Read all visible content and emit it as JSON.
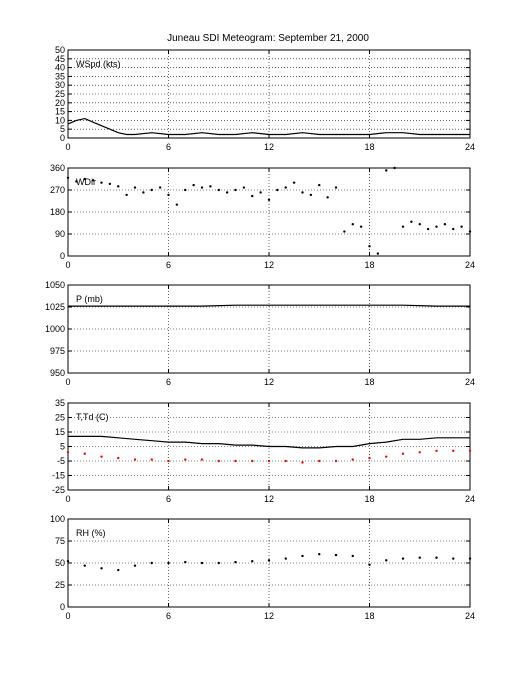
{
  "figure": {
    "title": "Juneau SDI Meteogram: September 21, 2000"
  },
  "chart_data": [
    {
      "type": "line",
      "label": "WSpd (kts)",
      "x_ticks": [
        "0",
        "6",
        "12",
        "18",
        "24"
      ],
      "y_ticks": [
        "0",
        "5",
        "10",
        "15",
        "20",
        "25",
        "30",
        "35",
        "40",
        "45",
        "50"
      ],
      "xlim": [
        0,
        24
      ],
      "ylim": [
        0,
        50
      ],
      "grid": true,
      "series": [
        {
          "color": "#000000",
          "style": "line",
          "x": [
            0,
            0.5,
            1,
            1.5,
            2,
            2.5,
            3,
            3.5,
            4,
            5,
            6,
            7,
            8,
            9,
            10,
            11,
            12,
            13,
            14,
            15,
            16,
            17,
            18,
            19,
            20,
            21,
            22,
            23,
            24
          ],
          "y": [
            8,
            10,
            11,
            9,
            7,
            5,
            3,
            2,
            2,
            3,
            2,
            2,
            3,
            2,
            2,
            3,
            2,
            2,
            3,
            2,
            2,
            2,
            2,
            3,
            3,
            2,
            2,
            2,
            2
          ]
        }
      ]
    },
    {
      "type": "scatter",
      "label": "WDir",
      "x_ticks": [
        "0",
        "6",
        "12",
        "18",
        "24"
      ],
      "y_ticks": [
        "0",
        "90",
        "180",
        "270",
        "360"
      ],
      "xlim": [
        0,
        24
      ],
      "ylim": [
        0,
        360
      ],
      "grid": true,
      "series": [
        {
          "color": "#000000",
          "style": "dots",
          "x": [
            0,
            0.5,
            1,
            1.5,
            2,
            2.5,
            3,
            3.5,
            4,
            4.5,
            5,
            5.5,
            6,
            6.5,
            7,
            7.5,
            8,
            8.5,
            9,
            9.5,
            10,
            10.5,
            11,
            11.5,
            12,
            12.5,
            13,
            13.5,
            14,
            14.5,
            15,
            15.5,
            16,
            16.5,
            17,
            17.5,
            18,
            18.5,
            19,
            19.5,
            20,
            20.5,
            21,
            21.5,
            22,
            22.5,
            23,
            23.5,
            24
          ],
          "y": [
            320,
            305,
            315,
            310,
            300,
            295,
            285,
            250,
            280,
            260,
            270,
            280,
            250,
            210,
            270,
            290,
            280,
            285,
            270,
            260,
            270,
            280,
            245,
            260,
            230,
            270,
            280,
            300,
            260,
            250,
            290,
            240,
            280,
            100,
            130,
            120,
            40,
            10,
            350,
            360,
            120,
            140,
            130,
            110,
            120,
            130,
            110,
            120,
            100
          ]
        }
      ]
    },
    {
      "type": "line",
      "label": "P (mb)",
      "x_ticks": [
        "0",
        "6",
        "12",
        "18",
        "24"
      ],
      "y_ticks": [
        "950",
        "975",
        "1000",
        "1025",
        "1050"
      ],
      "xlim": [
        0,
        24
      ],
      "ylim": [
        950,
        1050
      ],
      "grid": true,
      "series": [
        {
          "color": "#000000",
          "style": "line",
          "x": [
            0,
            2,
            4,
            6,
            8,
            10,
            12,
            14,
            16,
            18,
            20,
            22,
            24
          ],
          "y": [
            1026,
            1026,
            1026,
            1026,
            1026,
            1027,
            1027,
            1027,
            1027,
            1027,
            1027,
            1026,
            1026
          ]
        }
      ]
    },
    {
      "type": "line",
      "label": "T,Td (C)",
      "x_ticks": [
        "0",
        "6",
        "12",
        "18",
        "24"
      ],
      "y_ticks": [
        "-25",
        "-15",
        "-5",
        "5",
        "15",
        "25",
        "35"
      ],
      "xlim": [
        0,
        24
      ],
      "ylim": [
        -25,
        35
      ],
      "grid": true,
      "series": [
        {
          "color": "#000000",
          "style": "line",
          "x": [
            0,
            1,
            2,
            3,
            4,
            5,
            6,
            7,
            8,
            9,
            10,
            11,
            12,
            13,
            14,
            15,
            16,
            17,
            18,
            19,
            20,
            21,
            22,
            23,
            24
          ],
          "y": [
            12,
            12,
            12,
            11,
            10,
            9,
            8,
            8,
            7,
            7,
            6,
            6,
            5,
            5,
            4,
            4,
            5,
            5,
            7,
            8,
            10,
            10,
            11,
            11,
            11
          ]
        },
        {
          "color": "#ff0000",
          "style": "dots",
          "x": [
            0,
            1,
            2,
            3,
            4,
            5,
            6,
            7,
            8,
            9,
            10,
            11,
            12,
            13,
            14,
            15,
            16,
            17,
            18,
            19,
            20,
            21,
            22,
            23,
            24
          ],
          "y": [
            1,
            0,
            -2,
            -3,
            -4,
            -4,
            -5,
            -4,
            -4,
            -5,
            -5,
            -5,
            -5,
            -5,
            -6,
            -5,
            -5,
            -4,
            -3,
            -2,
            0,
            1,
            2,
            2,
            2
          ]
        }
      ]
    },
    {
      "type": "scatter",
      "label": "RH (%)",
      "x_ticks": [
        "0",
        "6",
        "12",
        "18",
        "24"
      ],
      "y_ticks": [
        "0",
        "25",
        "50",
        "75",
        "100"
      ],
      "xlim": [
        0,
        24
      ],
      "ylim": [
        0,
        100
      ],
      "grid": true,
      "series": [
        {
          "color": "#000000",
          "style": "dots",
          "x": [
            0,
            1,
            2,
            3,
            4,
            5,
            6,
            7,
            8,
            9,
            10,
            11,
            12,
            13,
            14,
            15,
            16,
            17,
            18,
            19,
            20,
            21,
            22,
            23,
            24
          ],
          "y": [
            52,
            47,
            44,
            42,
            47,
            50,
            50,
            51,
            50,
            50,
            51,
            52,
            53,
            55,
            58,
            60,
            59,
            58,
            48,
            53,
            55,
            56,
            56,
            55,
            55
          ]
        }
      ]
    }
  ]
}
